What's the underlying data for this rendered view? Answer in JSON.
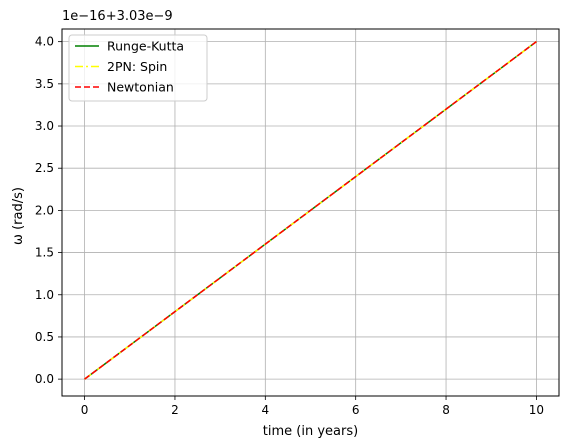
{
  "chart_data": {
    "type": "line",
    "title": "",
    "xlabel": "time (in years)",
    "ylabel": "ω (rad/s)",
    "offset_text": "1e−16+3.03e−9",
    "xlim": [
      -0.5,
      10.5
    ],
    "ylim": [
      -0.2,
      4.15
    ],
    "xticks": [
      0,
      2,
      4,
      6,
      8,
      10
    ],
    "xtick_labels": [
      "0",
      "2",
      "4",
      "6",
      "8",
      "10"
    ],
    "yticks": [
      0.0,
      0.5,
      1.0,
      1.5,
      2.0,
      2.5,
      3.0,
      3.5,
      4.0
    ],
    "ytick_labels": [
      "0.0",
      "0.5",
      "1.0",
      "1.5",
      "2.0",
      "2.5",
      "3.0",
      "3.5",
      "4.0"
    ],
    "grid": true,
    "legend_position": "top-left",
    "series": [
      {
        "name": "Runge-Kutta",
        "color": "#008000",
        "style": "solid",
        "x": [
          0,
          10
        ],
        "y": [
          0.0,
          4.0
        ]
      },
      {
        "name": "2PN: Spin",
        "color": "#ffff00",
        "style": "dashdot",
        "x": [
          0,
          10
        ],
        "y": [
          0.0,
          4.0
        ]
      },
      {
        "name": "Newtonian",
        "color": "#ff0000",
        "style": "dashed",
        "x": [
          0,
          10
        ],
        "y": [
          0.0,
          4.0
        ]
      }
    ]
  }
}
